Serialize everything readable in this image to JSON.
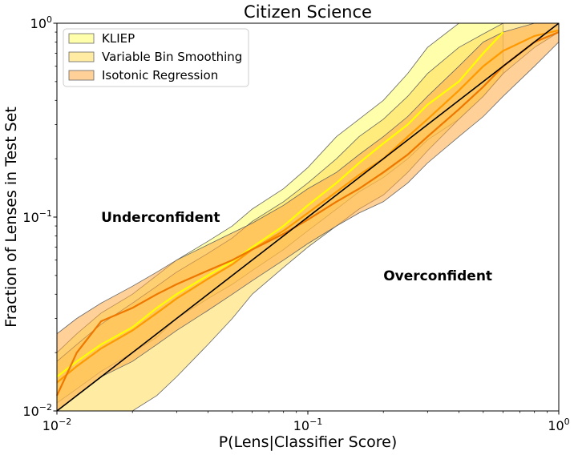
{
  "chart_data": {
    "type": "area",
    "title": "Citizen Science",
    "xlabel": "P(Lens|Classifier Score)",
    "ylabel": "Fraction of Lenses in Test Set",
    "xscale": "log",
    "yscale": "log",
    "xlim": [
      0.01,
      1
    ],
    "ylim": [
      0.01,
      1
    ],
    "x_ticks": [
      {
        "value": 0.01,
        "base": "10",
        "exp": "−2"
      },
      {
        "value": 0.1,
        "base": "10",
        "exp": "−1"
      },
      {
        "value": 1,
        "base": "10",
        "exp": "0"
      }
    ],
    "y_ticks": [
      {
        "value": 0.01,
        "base": "10",
        "exp": "−2"
      },
      {
        "value": 0.1,
        "base": "10",
        "exp": "−1"
      },
      {
        "value": 1,
        "base": "10",
        "exp": "0"
      }
    ],
    "legend_position": "top-left",
    "series": [
      {
        "name": "KLIEP",
        "fill": "#ffff66",
        "line": "#ffff00",
        "x": [
          0.01,
          0.012,
          0.015,
          0.02,
          0.025,
          0.03,
          0.04,
          0.05,
          0.06,
          0.08,
          0.1,
          0.13,
          0.16,
          0.2,
          0.25,
          0.3,
          0.4,
          0.5,
          0.6
        ],
        "lower": [
          0.011,
          0.013,
          0.016,
          0.02,
          0.024,
          0.03,
          0.038,
          0.045,
          0.053,
          0.068,
          0.085,
          0.11,
          0.135,
          0.16,
          0.2,
          0.25,
          0.32,
          0.42,
          0.55
        ],
        "median": [
          0.015,
          0.018,
          0.022,
          0.027,
          0.034,
          0.04,
          0.05,
          0.059,
          0.07,
          0.09,
          0.115,
          0.15,
          0.19,
          0.24,
          0.3,
          0.38,
          0.5,
          0.7,
          0.9
        ],
        "upper": [
          0.02,
          0.025,
          0.032,
          0.04,
          0.05,
          0.06,
          0.075,
          0.09,
          0.11,
          0.14,
          0.18,
          0.26,
          0.32,
          0.4,
          0.55,
          0.75,
          1.0,
          1.0,
          1.0
        ]
      },
      {
        "name": "Variable Bin Smoothing",
        "fill": "#ffdd55",
        "line": "#ff9900",
        "x": [
          0.01,
          0.012,
          0.015,
          0.02,
          0.025,
          0.03,
          0.04,
          0.05,
          0.06,
          0.08,
          0.1,
          0.13,
          0.16,
          0.2,
          0.25,
          0.3,
          0.4,
          0.5,
          0.6,
          0.8,
          1.0
        ],
        "lower": [
          0.01,
          0.01,
          0.01,
          0.01,
          0.012,
          0.015,
          0.022,
          0.03,
          0.04,
          0.055,
          0.07,
          0.09,
          0.11,
          0.13,
          0.17,
          0.22,
          0.32,
          0.42,
          0.55,
          0.75,
          0.9
        ],
        "median": [
          0.014,
          0.017,
          0.021,
          0.026,
          0.032,
          0.038,
          0.048,
          0.057,
          0.068,
          0.085,
          0.105,
          0.135,
          0.165,
          0.2,
          0.26,
          0.32,
          0.45,
          0.6,
          0.72,
          0.86,
          0.92
        ],
        "upper": [
          0.018,
          0.022,
          0.028,
          0.036,
          0.044,
          0.052,
          0.065,
          0.078,
          0.095,
          0.12,
          0.15,
          0.2,
          0.26,
          0.32,
          0.42,
          0.55,
          0.75,
          0.88,
          1.0,
          1.0,
          1.0
        ]
      },
      {
        "name": "Isotonic Regression",
        "fill": "#ffaa44",
        "line": "#ee7700",
        "x": [
          0.01,
          0.012,
          0.015,
          0.02,
          0.025,
          0.03,
          0.04,
          0.05,
          0.06,
          0.08,
          0.1,
          0.13,
          0.16,
          0.2,
          0.25,
          0.3,
          0.4,
          0.5,
          0.6,
          0.8,
          1.0
        ],
        "lower": [
          0.01,
          0.012,
          0.015,
          0.018,
          0.022,
          0.026,
          0.033,
          0.04,
          0.047,
          0.06,
          0.073,
          0.09,
          0.105,
          0.12,
          0.15,
          0.19,
          0.26,
          0.33,
          0.42,
          0.6,
          0.8
        ],
        "median": [
          0.012,
          0.02,
          0.029,
          0.034,
          0.04,
          0.045,
          0.053,
          0.06,
          0.068,
          0.082,
          0.097,
          0.12,
          0.14,
          0.17,
          0.21,
          0.26,
          0.36,
          0.47,
          0.6,
          0.8,
          0.9
        ],
        "upper": [
          0.025,
          0.03,
          0.036,
          0.044,
          0.052,
          0.06,
          0.072,
          0.083,
          0.093,
          0.115,
          0.14,
          0.17,
          0.21,
          0.26,
          0.33,
          0.42,
          0.6,
          0.8,
          0.9,
          1.0,
          1.0
        ]
      }
    ],
    "reference_line": {
      "x": [
        0.01,
        1
      ],
      "y": [
        0.01,
        1
      ],
      "color": "#000000"
    },
    "annotations": [
      {
        "text": "Underconfident",
        "x": 0.015,
        "y": 0.1
      },
      {
        "text": "Overconfident",
        "x": 0.2,
        "y": 0.05
      }
    ]
  }
}
